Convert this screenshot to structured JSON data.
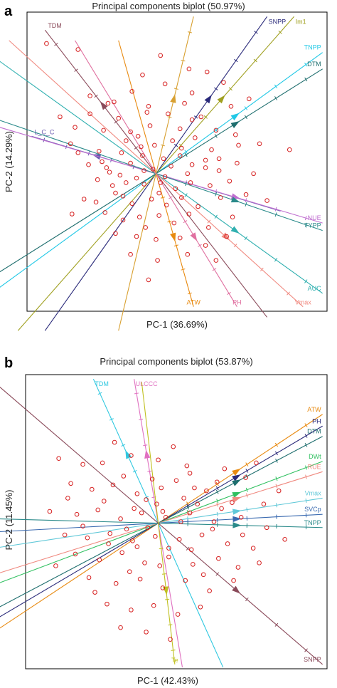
{
  "panels": [
    {
      "panel_label": "a",
      "chart_data": {
        "type": "scatter",
        "title": "Principal components biplot (50.97%)",
        "xlabel": "PC-1  (36.69%)",
        "ylabel": "PC-2  (14.29%)",
        "xlim": [
          -1,
          1
        ],
        "ylim": [
          -1,
          1
        ],
        "grid": false,
        "origin": [
          -0.14,
          -0.08
        ],
        "points": [
          [
            -0.87,
            0.79
          ],
          [
            -0.66,
            0.75
          ],
          [
            -0.11,
            0.71
          ],
          [
            -0.23,
            0.58
          ],
          [
            0.08,
            0.62
          ],
          [
            0.2,
            0.6
          ],
          [
            -0.58,
            0.44
          ],
          [
            -0.42,
            0.4
          ],
          [
            -0.46,
            0.39
          ],
          [
            -0.19,
            0.37
          ],
          [
            -0.06,
            0.32
          ],
          [
            0.1,
            0.46
          ],
          [
            0.48,
            0.42
          ],
          [
            0.16,
            0.3
          ],
          [
            0.1,
            0.28
          ],
          [
            -0.78,
            0.3
          ],
          [
            -0.68,
            0.23
          ],
          [
            -0.49,
            0.21
          ],
          [
            -0.31,
            0.2
          ],
          [
            -0.26,
            0.17
          ],
          [
            -0.18,
            0.24
          ],
          [
            0.02,
            0.22
          ],
          [
            0.26,
            0.21
          ],
          [
            0.41,
            0.11
          ],
          [
            0.55,
            0.12
          ],
          [
            0.75,
            0.08
          ],
          [
            -0.71,
            0.12
          ],
          [
            -0.66,
            0.06
          ],
          [
            -0.52,
            0.07
          ],
          [
            -0.37,
            0.06
          ],
          [
            -0.23,
            0.04
          ],
          [
            -0.15,
            0.11
          ],
          [
            -0.09,
            0.02
          ],
          [
            0.03,
            0.09
          ],
          [
            0.19,
            0.01
          ],
          [
            -0.59,
            -0.02
          ],
          [
            -0.47,
            -0.04
          ],
          [
            -0.31,
            -0.01
          ],
          [
            -0.22,
            -0.06
          ],
          [
            -0.04,
            -0.03
          ],
          [
            0.07,
            -0.08
          ],
          [
            0.19,
            -0.04
          ],
          [
            0.28,
            -0.06
          ],
          [
            -0.53,
            -0.12
          ],
          [
            -0.43,
            -0.16
          ],
          [
            -0.34,
            -0.14
          ],
          [
            -0.22,
            -0.15
          ],
          [
            -0.11,
            -0.14
          ],
          [
            -0.01,
            -0.18
          ],
          [
            0.09,
            -0.14
          ],
          [
            0.22,
            -0.16
          ],
          [
            0.35,
            -0.13
          ],
          [
            -0.62,
            -0.25
          ],
          [
            -0.54,
            -0.27
          ],
          [
            -0.41,
            -0.21
          ],
          [
            -0.3,
            -0.28
          ],
          [
            -0.17,
            -0.25
          ],
          [
            -0.07,
            -0.29
          ],
          [
            0.03,
            -0.24
          ],
          [
            0.14,
            -0.3
          ],
          [
            0.29,
            -0.24
          ],
          [
            0.46,
            -0.22
          ],
          [
            0.6,
            -0.26
          ],
          [
            -0.48,
            -0.34
          ],
          [
            -0.36,
            -0.39
          ],
          [
            -0.25,
            -0.37
          ],
          [
            -0.12,
            -0.36
          ],
          [
            -0.02,
            -0.41
          ],
          [
            0.08,
            -0.35
          ],
          [
            0.21,
            -0.44
          ],
          [
            0.37,
            -0.37
          ],
          [
            -0.41,
            -0.48
          ],
          [
            -0.27,
            -0.5
          ],
          [
            -0.14,
            -0.52
          ],
          [
            0.02,
            -0.51
          ],
          [
            0.19,
            -0.56
          ],
          [
            0.33,
            -0.5
          ],
          [
            -0.31,
            -0.62
          ],
          [
            -0.13,
            -0.66
          ],
          [
            0.07,
            -0.62
          ],
          [
            0.26,
            -0.66
          ],
          [
            -0.19,
            -0.79
          ],
          [
            -0.45,
            -0.07
          ],
          [
            -0.38,
            -0.09
          ],
          [
            -0.27,
            -0.11
          ],
          [
            -0.16,
            -0.05
          ],
          [
            -0.24,
            0.1
          ],
          [
            -0.34,
            0.14
          ],
          [
            -0.03,
            0.14
          ],
          [
            0.1,
            -0.02
          ],
          [
            -0.08,
            -0.1
          ],
          [
            0.02,
            0.04
          ],
          [
            -0.12,
            -0.21
          ],
          [
            -0.2,
            0.33
          ],
          [
            0.31,
            0.53
          ],
          [
            0.36,
            0.37
          ],
          [
            0.23,
            0.08
          ],
          [
            -0.58,
            0.32
          ],
          [
            -0.39,
            0.29
          ],
          [
            0.51,
            -0.08
          ],
          [
            0.39,
            0.18
          ],
          [
            0.05,
            0.39
          ],
          [
            -0.3,
            0.47
          ],
          [
            -0.08,
            0.52
          ],
          [
            0.28,
            0.02
          ],
          [
            0.4,
            -0.01
          ],
          [
            -0.5,
            0.0
          ],
          [
            -0.36,
            -0.23
          ],
          [
            -0.21,
            -0.44
          ],
          [
            -0.7,
            -0.35
          ],
          [
            0.12,
            0.16
          ]
        ],
        "vectors": [
          {
            "name": "SNPP",
            "x": 0.6,
            "y": 0.97,
            "color": "#2a2a7a"
          },
          {
            "name": "Im1",
            "x": 0.78,
            "y": 0.97,
            "color": "#a0a020"
          },
          {
            "name": "TNPP",
            "x": 0.97,
            "y": 0.73,
            "color": "#20c8e6"
          },
          {
            "name": "DTM",
            "x": 0.97,
            "y": 0.62,
            "color": "#1e6e6e"
          },
          {
            "name": "TDM",
            "x": -0.88,
            "y": 0.88,
            "color": "#8a4a5a"
          },
          {
            "name": "L_C_C",
            "x": -0.97,
            "y": 0.17,
            "color": "#6a5ab0"
          },
          {
            "name": "",
            "x": 0.11,
            "y": 0.97,
            "color": "#d8a030"
          },
          {
            "name": "NUE",
            "x": 0.97,
            "y": -0.41,
            "color": "#c070d0"
          },
          {
            "name": "TYPP",
            "x": 0.97,
            "y": -0.46,
            "color": "#2a8a8a"
          },
          {
            "name": "AUC",
            "x": 0.97,
            "y": -0.88,
            "color": "#30b0b0"
          },
          {
            "name": "ATW",
            "x": 0.11,
            "y": -0.97,
            "color": "#e88a10"
          },
          {
            "name": "PH",
            "x": 0.4,
            "y": -0.97,
            "color": "#e070a0"
          },
          {
            "name": "Vmax",
            "x": 0.84,
            "y": -0.97,
            "color": "#f08a80"
          }
        ]
      }
    },
    {
      "panel_label": "b",
      "chart_data": {
        "type": "scatter",
        "title": "Principal components biplot (53.87%)",
        "xlabel": "PC-1  (42.43%)",
        "ylabel": "PC-2  (11.45%)",
        "xlim": [
          -1,
          1
        ],
        "ylim": [
          -1,
          1
        ],
        "grid": false,
        "origin": [
          -0.12,
          -0.01
        ],
        "points": [
          [
            -0.78,
            0.43
          ],
          [
            -0.62,
            0.39
          ],
          [
            -0.49,
            0.4
          ],
          [
            -0.3,
            0.45
          ],
          [
            -0.12,
            0.42
          ],
          [
            0.09,
            0.33
          ],
          [
            0.32,
            0.36
          ],
          [
            0.46,
            0.3
          ],
          [
            -0.7,
            0.26
          ],
          [
            -0.56,
            0.22
          ],
          [
            -0.42,
            0.25
          ],
          [
            -0.26,
            0.19
          ],
          [
            -0.1,
            0.23
          ],
          [
            0.05,
            0.16
          ],
          [
            0.2,
            0.21
          ],
          [
            0.37,
            0.13
          ],
          [
            0.58,
            0.12
          ],
          [
            -0.84,
            0.07
          ],
          [
            -0.66,
            0.05
          ],
          [
            -0.52,
            0.08
          ],
          [
            -0.37,
            0.02
          ],
          [
            -0.23,
            0.06
          ],
          [
            -0.07,
            0.03
          ],
          [
            0.09,
            0.06
          ],
          [
            0.25,
            0.0
          ],
          [
            0.43,
            0.03
          ],
          [
            0.6,
            -0.04
          ],
          [
            -0.74,
            -0.09
          ],
          [
            -0.59,
            -0.11
          ],
          [
            -0.44,
            -0.08
          ],
          [
            -0.29,
            -0.13
          ],
          [
            -0.14,
            -0.1
          ],
          [
            0.02,
            -0.12
          ],
          [
            0.17,
            -0.09
          ],
          [
            0.34,
            -0.15
          ],
          [
            0.51,
            -0.18
          ],
          [
            -0.67,
            -0.22
          ],
          [
            -0.51,
            -0.26
          ],
          [
            -0.36,
            -0.21
          ],
          [
            -0.21,
            -0.28
          ],
          [
            -0.05,
            -0.24
          ],
          [
            0.11,
            -0.29
          ],
          [
            0.28,
            -0.25
          ],
          [
            0.41,
            -0.31
          ],
          [
            -0.58,
            -0.38
          ],
          [
            -0.4,
            -0.42
          ],
          [
            -0.24,
            -0.39
          ],
          [
            -0.09,
            -0.45
          ],
          [
            0.06,
            -0.4
          ],
          [
            0.22,
            -0.47
          ],
          [
            -0.46,
            -0.56
          ],
          [
            -0.3,
            -0.6
          ],
          [
            -0.15,
            -0.57
          ],
          [
            0.01,
            -0.63
          ],
          [
            0.16,
            -0.58
          ],
          [
            -0.37,
            -0.72
          ],
          [
            -0.2,
            -0.75
          ],
          [
            -0.04,
            -0.8
          ],
          [
            -0.16,
            0.29
          ],
          [
            0.0,
            0.28
          ],
          [
            0.14,
            0.12
          ],
          [
            -0.19,
            -0.04
          ],
          [
            -0.33,
            -0.05
          ],
          [
            0.3,
            0.09
          ],
          [
            0.24,
            -0.05
          ],
          [
            -0.48,
            0.14
          ],
          [
            -0.62,
            -0.03
          ],
          [
            0.68,
            0.21
          ],
          [
            0.72,
            -0.12
          ],
          [
            -0.05,
            -0.18
          ],
          [
            -0.26,
            -0.17
          ],
          [
            0.1,
            -0.19
          ],
          [
            -0.13,
            0.12
          ],
          [
            -0.35,
            0.31
          ],
          [
            0.18,
            -0.36
          ],
          [
            -0.02,
            0.51
          ],
          [
            -0.54,
            -0.48
          ],
          [
            0.38,
            -0.4
          ],
          [
            -0.8,
            -0.3
          ],
          [
            -0.41,
            0.54
          ],
          [
            0.53,
            0.4
          ],
          [
            -0.09,
            0.07
          ],
          [
            0.03,
            0.0
          ],
          [
            -0.2,
            0.15
          ],
          [
            -0.28,
            0.09
          ],
          [
            0.12,
            0.23
          ],
          [
            -0.11,
            -0.3
          ],
          [
            0.07,
            0.38
          ],
          [
            -0.72,
            0.16
          ],
          [
            -0.31,
            -0.34
          ],
          [
            0.44,
            -0.09
          ],
          [
            0.27,
            0.27
          ],
          [
            -0.45,
            -0.15
          ],
          [
            0.55,
            -0.28
          ]
        ],
        "vectors": [
          {
            "name": "TDM",
            "x": -0.55,
            "y": 0.97,
            "color": "#30c8e0"
          },
          {
            "name": "ULCCC",
            "x": -0.28,
            "y": 0.97,
            "color": "#e070c0"
          },
          {
            "name": "ATW",
            "x": 0.97,
            "y": 0.73,
            "color": "#e88a10"
          },
          {
            "name": "PH",
            "x": 0.97,
            "y": 0.65,
            "color": "#2a2a7a"
          },
          {
            "name": "DTM",
            "x": 0.97,
            "y": 0.58,
            "color": "#1e6e6e"
          },
          {
            "name": "DWt",
            "x": 0.97,
            "y": 0.41,
            "color": "#30c060"
          },
          {
            "name": "RUE",
            "x": 0.97,
            "y": 0.34,
            "color": "#f08a80"
          },
          {
            "name": "Vmax",
            "x": 0.97,
            "y": 0.16,
            "color": "#60c8d8"
          },
          {
            "name": "SVCp",
            "x": 0.97,
            "y": 0.05,
            "color": "#3a6ab0"
          },
          {
            "name": "TNPP",
            "x": 0.97,
            "y": -0.04,
            "color": "#2a8a8a"
          },
          {
            "name": "SNPP",
            "x": 0.97,
            "y": -0.97,
            "color": "#8a4a5a"
          },
          {
            "name": "Te",
            "x": -0.01,
            "y": -0.97,
            "color": "#c0c020"
          }
        ]
      }
    }
  ]
}
